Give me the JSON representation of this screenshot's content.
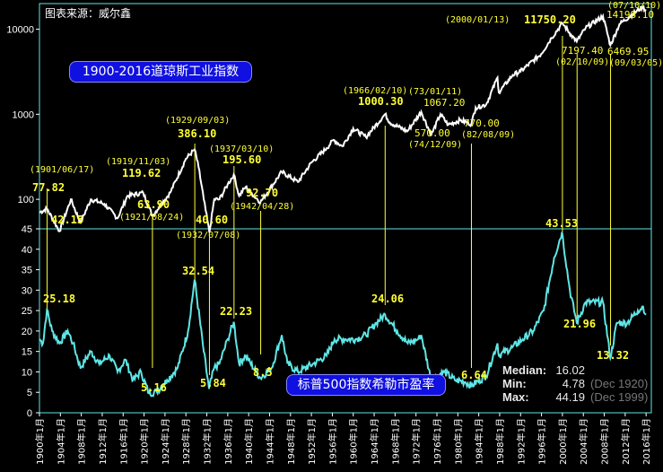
{
  "source": "图表来源：威尔鑫",
  "dow_title": "1900-2016道琼斯工业指数",
  "pe_title": "标普500指数希勒市盈率",
  "stats": {
    "median_label": "Median:",
    "median_value": "16.02",
    "median_note": "",
    "min_label": "Min:",
    "min_value": "4.78",
    "min_note": "(Dec 1920)",
    "max_label": "Max:",
    "max_value": "44.19",
    "max_note": "(Dec 1999)"
  },
  "colors": {
    "dow": "#ffffff",
    "pe": "#5fe6e6",
    "annotation": "#ffff33",
    "frame": "#5fe6e6",
    "pill": "#1010e0"
  },
  "chart_data": [
    {
      "type": "line",
      "title": "1900-2016道琼斯工业指数",
      "y_scale": "log",
      "y_ticks": [
        "100",
        "1000",
        "10000"
      ],
      "series": [
        {
          "name": "1900-2016道琼斯工业指数",
          "x": [
            "1900-01",
            "1901-06",
            "1903-11",
            "1906-01",
            "1907-11",
            "1909-11",
            "1912-06",
            "1914-12",
            "1916-11",
            "1919-11",
            "1921-08",
            "1925-01",
            "1928-01",
            "1929-09",
            "1930-06",
            "1931-06",
            "1932-07",
            "1933-06",
            "1934-06",
            "1936-01",
            "1937-03",
            "1938-03",
            "1939-06",
            "1940-06",
            "1942-04",
            "1946-05",
            "1949-06",
            "1952-01",
            "1954-12",
            "1956-04",
            "1957-12",
            "1960-01",
            "1962-06",
            "1966-02",
            "1967-01",
            "1970-05",
            "1973-01",
            "1974-12",
            "1976-09",
            "1978-03",
            "1980-06",
            "1982-08",
            "1983-06",
            "1985-06",
            "1987-08",
            "1987-11",
            "1990-07",
            "1992-01",
            "1995-12",
            "1997-12",
            "2000-01",
            "2001-09",
            "2002-10",
            "2004-06",
            "2007-10",
            "2009-03",
            "2010-12",
            "2013-06",
            "2015-05",
            "2016-01"
          ],
          "values": [
            70,
            77.82,
            42.15,
            100,
            53,
            100,
            88,
            60,
            110,
            119.62,
            63.9,
            120,
            300,
            386.1,
            240,
            100,
            40.6,
            100,
            100,
            150,
            195.6,
            110,
            140,
            120,
            92.7,
            210,
            160,
            270,
            400,
            500,
            420,
            680,
            540,
            1000.3,
            800,
            630,
            1067.2,
            570,
            1000,
            750,
            850,
            770,
            1200,
            1300,
            2700,
            1800,
            2900,
            3200,
            5100,
            7900,
            11750.2,
            8600,
            7197.4,
            10300,
            14198.1,
            6469.95,
            11500,
            15000,
            18300,
            16500
          ]
        }
      ]
    },
    {
      "type": "line",
      "title": "标普500指数希勒市盈率",
      "y_ticks": [
        "0",
        "5",
        "10",
        "15",
        "20",
        "25",
        "30",
        "35",
        "40",
        "45"
      ],
      "x_ticks": [
        "1900年1月",
        "1904年1月",
        "1908年1月",
        "1912年1月",
        "1916年1月",
        "1920年1月",
        "1924年1月",
        "1928年1月",
        "1932年1月",
        "1936年1月",
        "1940年1月",
        "1944年1月",
        "1948年1月",
        "1952年1月",
        "1956年1月",
        "1960年1月",
        "1964年1月",
        "1968年1月",
        "1972年1月",
        "1976年1月",
        "1980年1月",
        "1984年1月",
        "1988年1月",
        "1992年1月",
        "1996年1月",
        "2000年1月",
        "2004年1月",
        "2008年1月",
        "2012年1月",
        "2016年1月"
      ],
      "series": [
        {
          "name": "标普500指数希勒市盈率",
          "x": [
            "1900-01",
            "1900-09",
            "1901-06",
            "1902-06",
            "1903-11",
            "1905-06",
            "1906-06",
            "1907-11",
            "1909-11",
            "1911-06",
            "1913-06",
            "1914-12",
            "1916-06",
            "1917-12",
            "1919-06",
            "1920-12",
            "1922-06",
            "1924-06",
            "1926-06",
            "1928-06",
            "1929-09",
            "1931-06",
            "1932-06",
            "1933-06",
            "1934-06",
            "1936-01",
            "1937-03",
            "1938-03",
            "1939-06",
            "1941-06",
            "1942-04",
            "1944-06",
            "1946-05",
            "1947-06",
            "1949-06",
            "1952-06",
            "1954-12",
            "1956-06",
            "1958-06",
            "1960-06",
            "1962-06",
            "1964-06",
            "1966-02",
            "1968-06",
            "1970-06",
            "1972-06",
            "1973-01",
            "1974-12",
            "1977-06",
            "1979-06",
            "1981-06",
            "1982-08",
            "1985-06",
            "1987-08",
            "1987-11",
            "1990-06",
            "1992-06",
            "1994-06",
            "1996-06",
            "1998-06",
            "1999-12",
            "2001-06",
            "2002-10",
            "2004-06",
            "2007-10",
            "2009-03",
            "2010-06",
            "2012-06",
            "2014-06",
            "2015-06",
            "2016-01"
          ],
          "values": [
            18,
            17,
            25.18,
            20,
            17,
            20,
            17,
            11,
            15,
            12,
            14,
            10,
            13,
            8,
            10,
            4.78,
            5.16,
            8,
            11,
            20,
            32.54,
            15,
            5.84,
            11,
            12,
            18,
            22.23,
            12,
            14,
            10,
            8.5,
            11,
            19,
            12,
            10,
            12,
            14,
            18,
            18,
            18,
            19,
            22,
            24.06,
            20,
            17,
            18,
            19,
            8,
            10,
            8,
            7.5,
            6.64,
            9,
            17,
            14,
            16,
            18,
            20,
            25,
            38,
            44.19,
            30,
            21.96,
            27,
            27,
            13.32,
            22,
            22,
            25,
            26,
            24
          ]
        }
      ]
    }
  ],
  "annotations": {
    "a1901": "(1901/06/17)",
    "a1901v": "77.82",
    "a1903v": "42.15",
    "a1919": "(1919/11/03)",
    "a1919v": "119.62",
    "a1921v": "63.90",
    "a1921": "(1921/08/24)",
    "a1929": "(1929/09/03)",
    "a1929v": "386.10",
    "a1932v": "40.60",
    "a1932": "(1932/07/08)",
    "a1937": "(1937/03/10)",
    "a1937v": "195.60",
    "a1942v": "92.70",
    "a1942": "(1942/04/28)",
    "a1966": "(1966/02/10)",
    "a1966v": "1000.30",
    "a1973": "(73/01/11)",
    "a1973v": "1067.20",
    "a1974v": "570.00",
    "a1974": "(74/12/09)",
    "a1982v": "770.00",
    "a1982": "(82/08/09)",
    "a2000": "(2000/01/13)",
    "a2000v": "11750.20",
    "a2002v": "7197.40",
    "a2002": "(02/10/09)",
    "a2007": "(07/10/10)",
    "a2007v": "14198.10",
    "a2009v": "6469.95",
    "a2009": "(09/03/05)",
    "p1901": "25.18",
    "p1921": "5.16",
    "p1929": "32.54",
    "p1932": "5.84",
    "p1937": "22.23",
    "p1942": "8.5",
    "p1966": "24.06",
    "p1982": "6.64",
    "p2000": "43.53",
    "p2002": "21.96",
    "p2009": "13.32"
  }
}
